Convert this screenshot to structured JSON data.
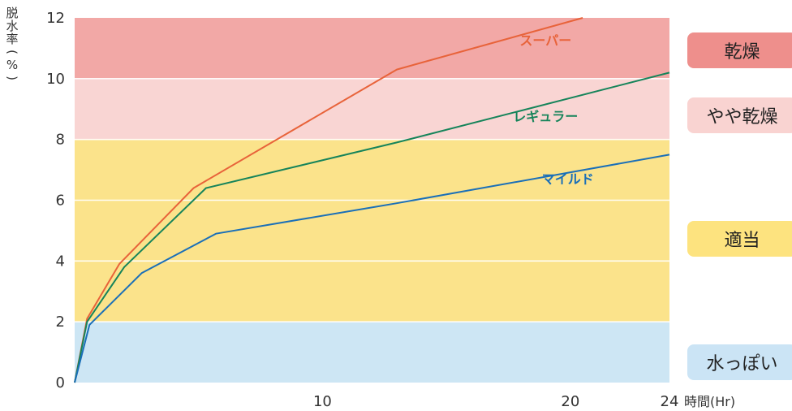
{
  "chart_data": {
    "type": "line",
    "xlabel": "時間(Hr)",
    "ylabel": "脱水率(%)",
    "xlim": [
      0,
      24
    ],
    "ylim": [
      0,
      12
    ],
    "x_ticks": [
      "10",
      "20",
      "24"
    ],
    "y_ticks": [
      "0",
      "2",
      "4",
      "6",
      "8",
      "10",
      "12"
    ],
    "bands": [
      {
        "label": "乾燥",
        "from": 10,
        "to": 12,
        "color": "#f2a8a6",
        "tag_color": "#ee8f8c"
      },
      {
        "label": "やや乾燥",
        "from": 8,
        "to": 10,
        "color": "#f9d5d3",
        "tag_color": "#f9d3d1"
      },
      {
        "label": "適当",
        "from": 2,
        "to": 8,
        "color": "#fbe38b",
        "tag_color": "#fde37f"
      },
      {
        "label": "水っぽい",
        "from": 0,
        "to": 2,
        "color": "#cde6f4",
        "tag_color": "#cbe4f5"
      }
    ],
    "series": [
      {
        "name": "スーパー",
        "color": "#e8633a",
        "label_x": 19.0,
        "label_y": 11.1,
        "x": [
          0,
          0.5,
          1.8,
          4.8,
          13,
          20.5
        ],
        "y": [
          0,
          2.1,
          3.9,
          6.4,
          10.3,
          12
        ]
      },
      {
        "name": "レギュラー",
        "color": "#16845a",
        "label_x": 19.0,
        "label_y": 8.6,
        "x": [
          0,
          0.5,
          2.0,
          5.3,
          13,
          24
        ],
        "y": [
          0,
          2.0,
          3.8,
          6.4,
          7.9,
          10.2
        ]
      },
      {
        "name": "マイルド",
        "color": "#1a6fb8",
        "label_x": 19.9,
        "label_y": 6.55,
        "x": [
          0,
          0.6,
          2.7,
          5.7,
          13,
          24
        ],
        "y": [
          0,
          1.9,
          3.6,
          4.9,
          5.9,
          7.5
        ]
      }
    ]
  }
}
